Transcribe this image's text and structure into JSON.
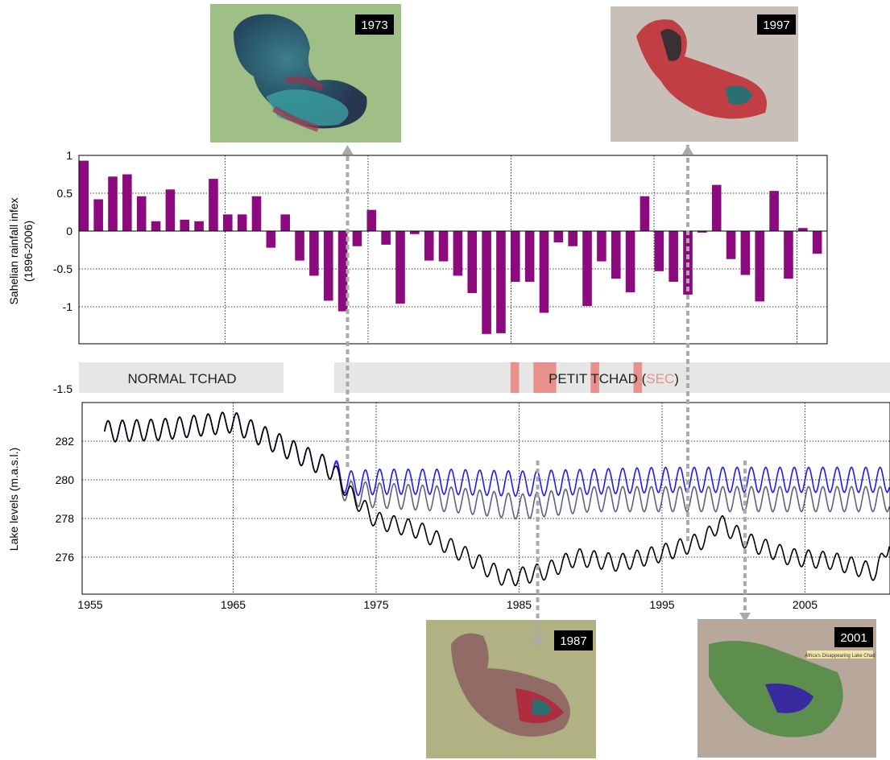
{
  "chart_data": [
    {
      "type": "bar",
      "ylabel": "Sahelian rainfall infex",
      "ylabel_sub": "(1896-2006)",
      "yticks": [
        "1",
        "0.5",
        "0",
        "-0.5",
        "-1",
        "-1.5"
      ],
      "ylim": [
        -1.5,
        1
      ],
      "bar_color": "#8b0a7d",
      "grid": true,
      "x": [
        1955,
        1956,
        1957,
        1958,
        1959,
        1960,
        1961,
        1962,
        1963,
        1964,
        1965,
        1966,
        1967,
        1968,
        1969,
        1970,
        1971,
        1972,
        1973,
        1974,
        1975,
        1976,
        1977,
        1978,
        1979,
        1980,
        1981,
        1982,
        1983,
        1984,
        1985,
        1986,
        1987,
        1988,
        1989,
        1990,
        1991,
        1992,
        1993,
        1994,
        1995,
        1996,
        1997,
        1998,
        1999,
        2000,
        2001,
        2002,
        2003,
        2004,
        2005,
        2006
      ],
      "values": [
        0.93,
        0.42,
        0.72,
        0.75,
        0.46,
        0.13,
        0.55,
        0.15,
        0.13,
        0.69,
        0.22,
        0.22,
        0.46,
        -0.22,
        0.22,
        -0.39,
        -0.59,
        -0.92,
        -1.06,
        -0.2,
        0.28,
        -0.18,
        -0.96,
        -0.04,
        -0.39,
        -0.4,
        -0.59,
        -0.82,
        -1.36,
        -1.35,
        -0.67,
        -0.67,
        -1.08,
        -0.15,
        -0.2,
        -0.99,
        -0.4,
        -0.63,
        -0.81,
        0.46,
        -0.53,
        -0.67,
        -0.84,
        -0.02,
        0.61,
        -0.37,
        -0.58,
        -0.93,
        0.53,
        -0.63,
        0.04,
        -0.3
      ]
    },
    {
      "type": "line",
      "ylabel": "Lake levels (m.a.s.l.)",
      "yticks": [
        "282",
        "280",
        "278",
        "276"
      ],
      "xticks": [
        "1955",
        "1965",
        "1975",
        "1985",
        "1995",
        "2005"
      ],
      "xlim": [
        1955,
        2011
      ],
      "ylim": [
        274.2,
        284.2
      ],
      "grid": true,
      "series": [
        {
          "color": "#1a1aff",
          "x": [
            1956,
            1960,
            1965,
            1970,
            1972,
            1973,
            1975,
            1980,
            1985,
            1990,
            1995,
            2000,
            2005,
            2011
          ],
          "y": [
            282.5,
            282.6,
            283.0,
            281.2,
            280.5,
            279.8,
            279.9,
            279.9,
            279.8,
            279.9,
            280.0,
            280.0,
            280.0,
            280.0
          ]
        },
        {
          "color": "#606080",
          "x": [
            1956,
            1960,
            1965,
            1970,
            1972,
            1973,
            1975,
            1980,
            1985,
            1990,
            1995,
            2000,
            2005,
            2011
          ],
          "y": [
            282.5,
            282.6,
            283.0,
            281.2,
            280.5,
            279.3,
            279.2,
            279.0,
            278.6,
            279.0,
            279.0,
            279.0,
            279.0,
            279.0
          ]
        },
        {
          "color": "#000000",
          "x": [
            1956,
            1960,
            1965,
            1970,
            1972,
            1973,
            1975,
            1978,
            1981,
            1984,
            1985,
            1987,
            1989,
            1992,
            1995,
            1998,
            1999,
            2001,
            2004,
            2007,
            2010,
            2011
          ],
          "y": [
            282.5,
            282.6,
            283.0,
            281.2,
            280.5,
            279.4,
            277.9,
            277.4,
            276.2,
            274.9,
            275.0,
            275.3,
            276.0,
            275.7,
            276.2,
            276.9,
            277.8,
            276.8,
            276.0,
            275.8,
            275.2,
            277.0
          ]
        }
      ]
    }
  ],
  "phases": [
    {
      "label": "NORMAL TCHAD"
    },
    {
      "label_main": "PETIT TCHAD (",
      "label_sec": "SEC",
      "label_end": ")"
    }
  ],
  "snapshots": [
    {
      "year": "1973",
      "series_year": 1973
    },
    {
      "year": "1997",
      "series_year": 1996.8
    },
    {
      "year": "1987",
      "series_year": 1986.3
    },
    {
      "year": "2001",
      "series_year": 2000.8
    }
  ],
  "snapshot_caption": "Africa's Disappearing Lake Chad",
  "dry_periods": [
    [
      1984.4,
      1985.0
    ],
    [
      1986.0,
      1987.6
    ],
    [
      1990.0,
      1990.6
    ],
    [
      1993.0,
      1993.6
    ]
  ],
  "colors": {
    "phase_bg": "#e6e6e6",
    "dry": "#e8918c",
    "connector": "#aaaaaa"
  }
}
